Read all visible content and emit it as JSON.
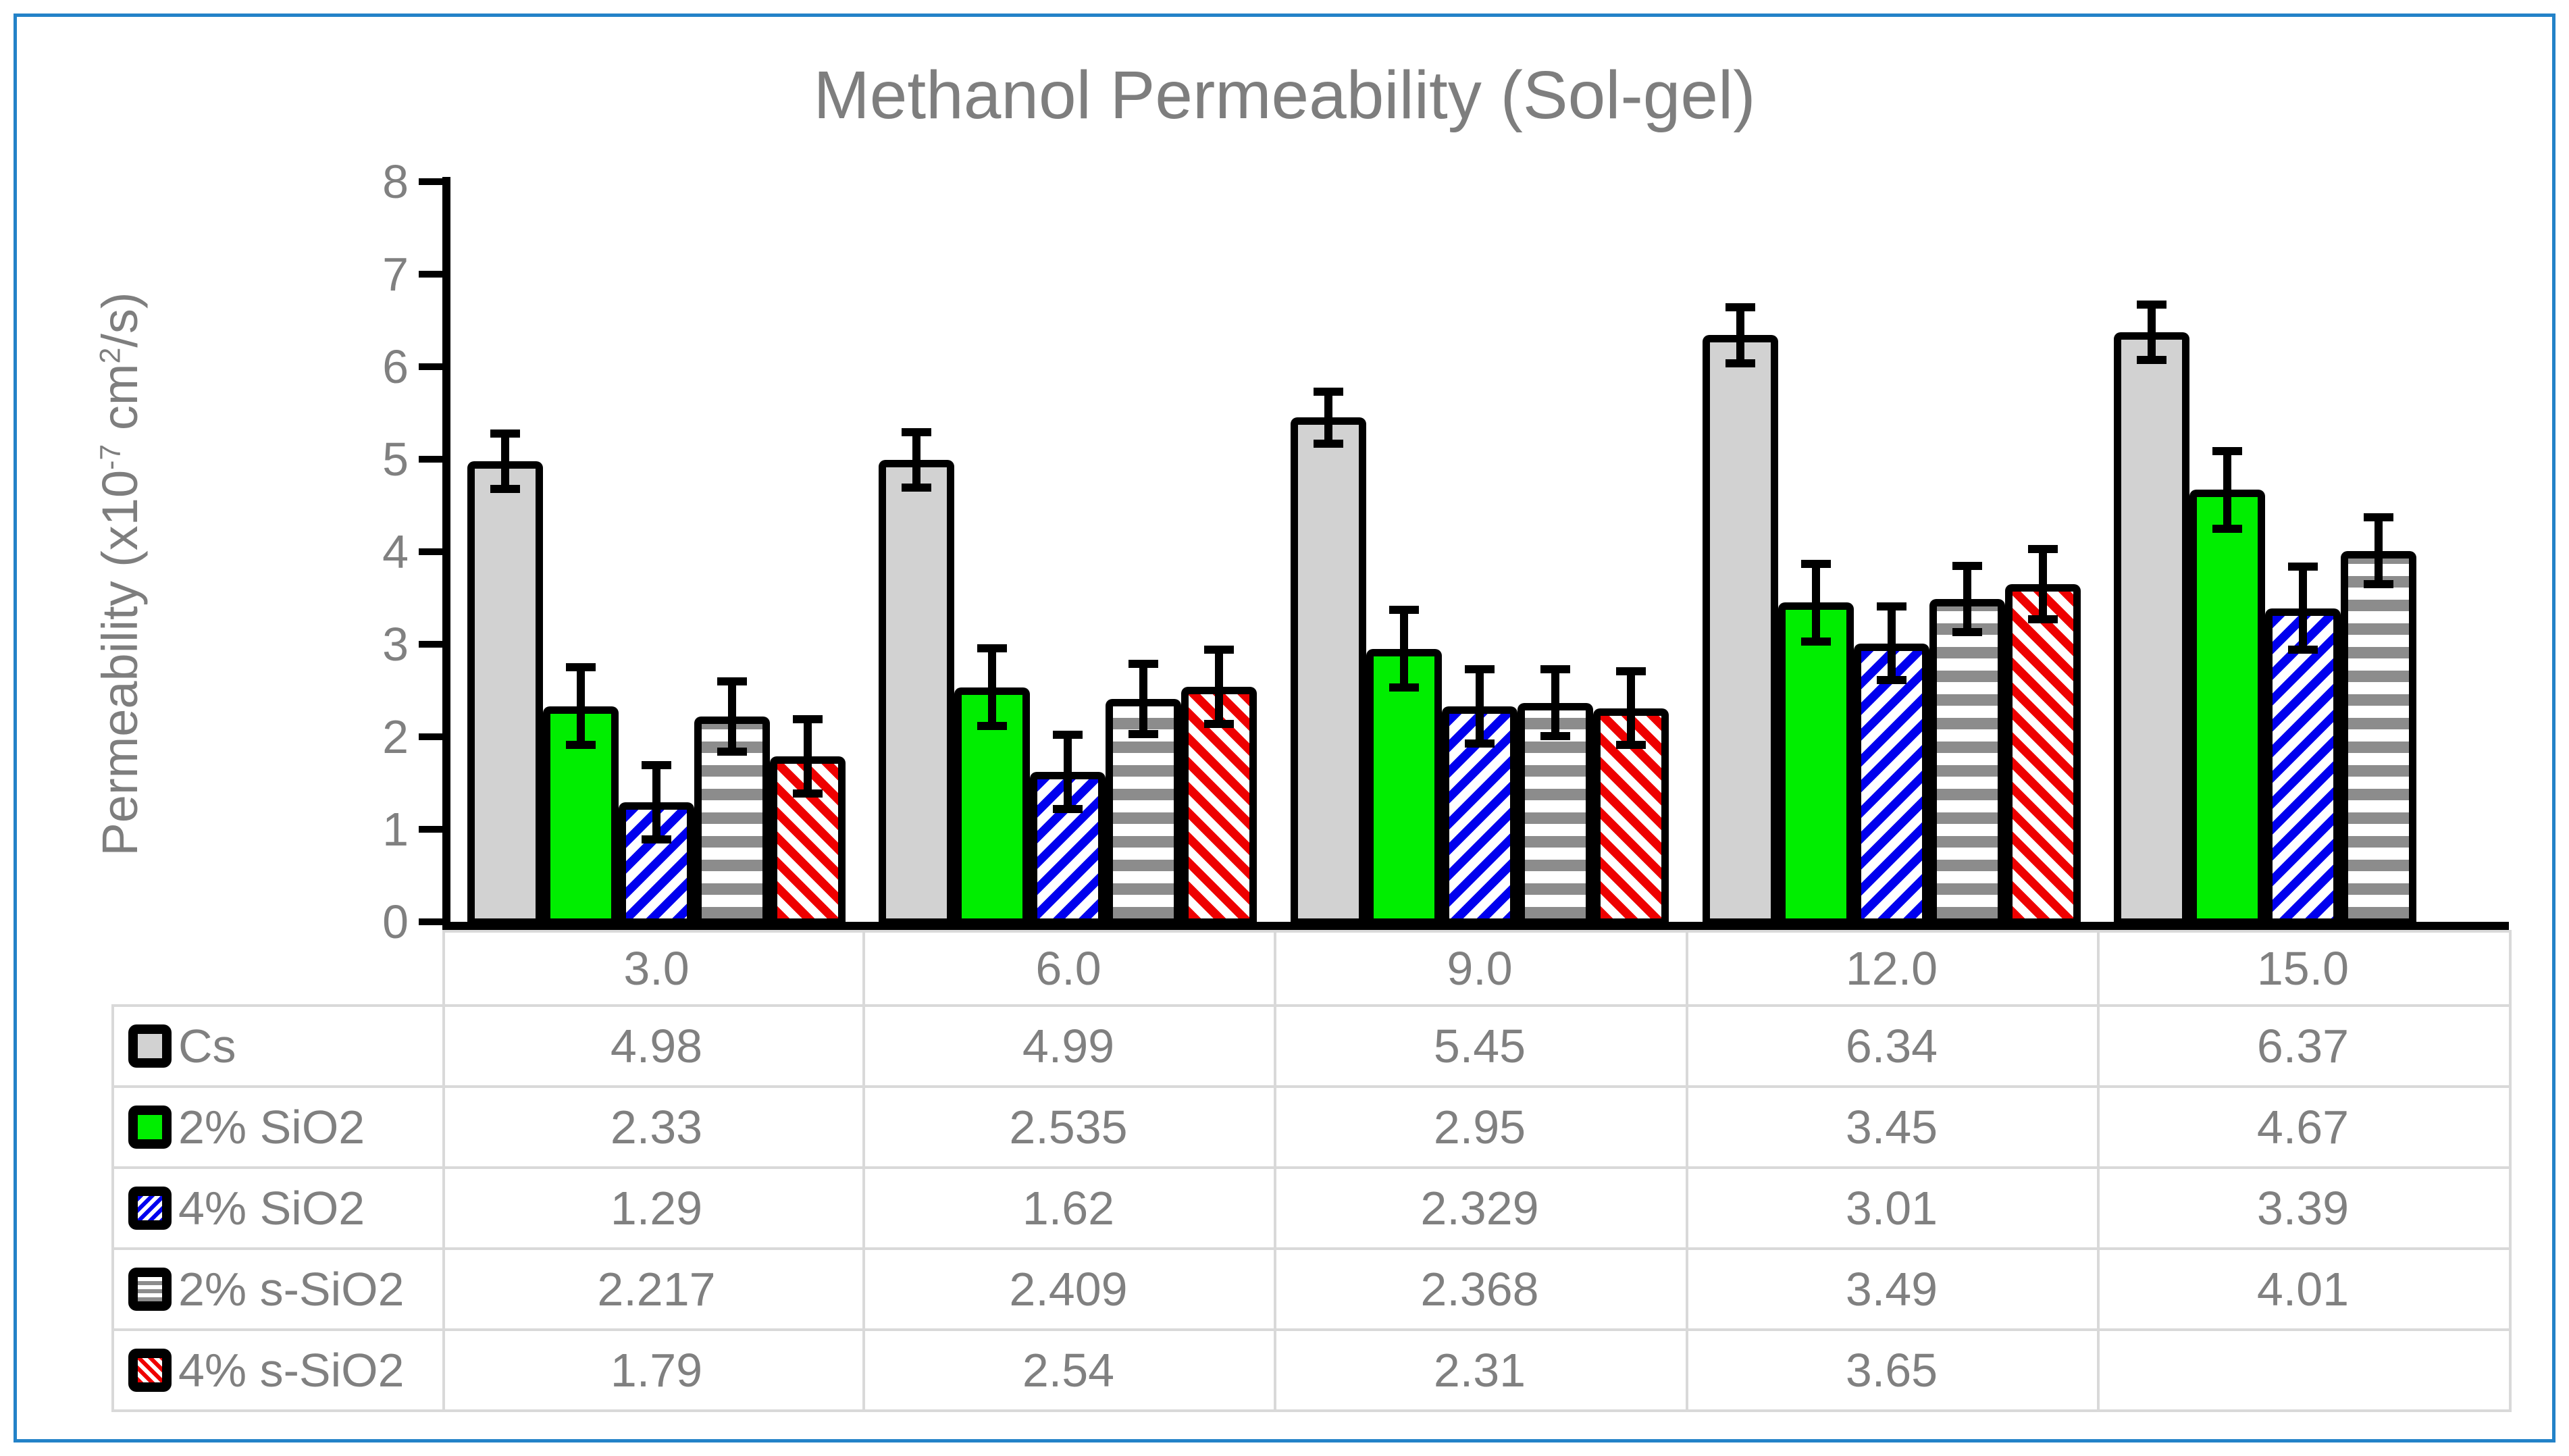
{
  "title": "Methanol Permeability (Sol-gel)",
  "y_axis": {
    "title_parts": {
      "p1": "Permeability (x10",
      "sup1": "-7",
      "p2": " cm",
      "sup2": "2",
      "p3": "/s)"
    },
    "min": 0,
    "max": 8,
    "tick_labels": [
      "0",
      "1",
      "2",
      "3",
      "4",
      "5",
      "6",
      "7",
      "8"
    ]
  },
  "colors": {
    "page_border": "#2382c8",
    "text_gray": "#808080",
    "title_gray": "#7e7e7e",
    "table_grid": "#d9d9d9",
    "bar_outline": "#000000",
    "cs_fill": "#d2d2d2",
    "green_fill": "#00ee00",
    "blue_hatch": "#0000ee",
    "gray_hatch": "#8c8c8c",
    "red_hatch": "#ee0000"
  },
  "chart_data": {
    "type": "bar",
    "title": "Methanol Permeability (Sol-gel)",
    "xlabel": "",
    "ylabel": "Permeability (x10^-7 cm^2/s)",
    "ylim": [
      0,
      8
    ],
    "ytick_step": 1,
    "grid": false,
    "legend_position": "table-left-column",
    "error_bars": true,
    "categories": [
      "3.0",
      "6.0",
      "9.0",
      "12.0",
      "15.0"
    ],
    "series": [
      {
        "name": "Cs",
        "style": "solid-light-gray",
        "values": [
          4.98,
          4.99,
          5.45,
          6.34,
          6.37
        ],
        "errors_est": [
          0.3,
          0.3,
          0.28,
          0.3,
          0.3
        ]
      },
      {
        "name": "2% SiO2",
        "style": "solid-green",
        "values": [
          2.33,
          2.535,
          2.95,
          3.45,
          4.67
        ],
        "errors_est": [
          0.42,
          0.42,
          0.42,
          0.42,
          0.42
        ]
      },
      {
        "name": "4% SiO2",
        "style": "blue-diagonal-up-hatch",
        "values": [
          1.29,
          1.62,
          2.329,
          3.01,
          3.39
        ],
        "errors_est": [
          0.4,
          0.4,
          0.4,
          0.4,
          0.45
        ]
      },
      {
        "name": "2% s-SiO2",
        "style": "gray-horizontal-hatch",
        "values": [
          2.217,
          2.409,
          2.368,
          3.49,
          4.01
        ],
        "errors_est": [
          0.38,
          0.38,
          0.36,
          0.36,
          0.36
        ]
      },
      {
        "name": "4% s-SiO2",
        "style": "red-diagonal-down-hatch",
        "values": [
          1.79,
          2.54,
          2.31,
          3.65,
          null
        ],
        "errors_est": [
          0.4,
          0.4,
          0.4,
          0.38,
          null
        ]
      }
    ],
    "data_table_display": [
      [
        "4.98",
        "4.99",
        "5.45",
        "6.34",
        "6.37"
      ],
      [
        "2.33",
        "2.535",
        "2.95",
        "3.45",
        "4.67"
      ],
      [
        "1.29",
        "1.62",
        "2.329",
        "3.01",
        "3.39"
      ],
      [
        "2.217",
        "2.409",
        "2.368",
        "3.49",
        "4.01"
      ],
      [
        "1.79",
        "2.54",
        "2.31",
        "3.65",
        ""
      ]
    ]
  }
}
